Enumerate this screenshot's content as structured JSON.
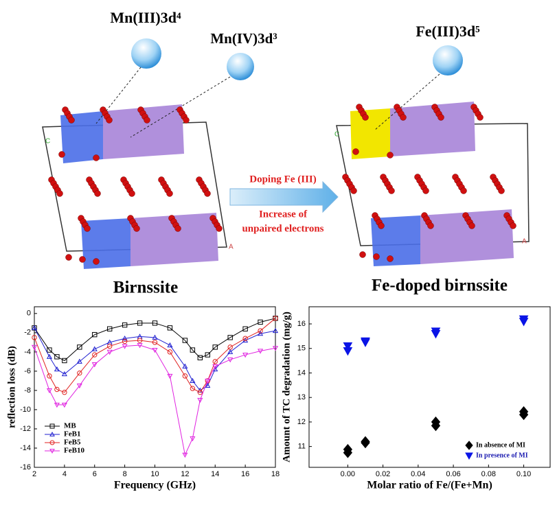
{
  "diagram": {
    "orbital_labels": [
      "Mn(III)3d⁴",
      "Mn(IV)3d³",
      "Fe(III)3d⁵"
    ],
    "arrow_top": "Doping Fe (III)",
    "arrow_bottom": [
      "Increase of",
      "unpaired electrons"
    ],
    "left_caption": "Birnssite",
    "right_caption": "Fe-doped birnssite",
    "axis_letters": [
      "C",
      "A",
      "C",
      "A"
    ]
  },
  "chart_data": [
    {
      "type": "line",
      "xlabel": "Frequency (GHz)",
      "ylabel": "reflection loss (dB)",
      "x": [
        2,
        3,
        3.5,
        4,
        5,
        6,
        7,
        8,
        9,
        10,
        11,
        12,
        12.5,
        13,
        13.5,
        14,
        15,
        16,
        17,
        18
      ],
      "series": [
        {
          "name": "MB",
          "color": "#000000",
          "marker": "square",
          "values": [
            -1.5,
            -3.8,
            -4.5,
            -4.9,
            -3.5,
            -2.2,
            -1.6,
            -1.2,
            -1.0,
            -1.0,
            -1.5,
            -2.8,
            -3.8,
            -4.6,
            -4.3,
            -3.5,
            -2.5,
            -1.6,
            -0.9,
            -0.5
          ]
        },
        {
          "name": "FeB1",
          "color": "#1f1fd0",
          "marker": "triangle-up",
          "values": [
            -1.5,
            -4.5,
            -5.8,
            -6.3,
            -5.0,
            -3.7,
            -3.0,
            -2.6,
            -2.4,
            -2.5,
            -3.3,
            -5.5,
            -7.0,
            -8.0,
            -7.5,
            -5.8,
            -4.0,
            -2.8,
            -2.1,
            -1.8
          ]
        },
        {
          "name": "FeB5",
          "color": "#e0201f",
          "marker": "circle",
          "values": [
            -2.5,
            -6.5,
            -7.9,
            -8.2,
            -6.2,
            -4.3,
            -3.4,
            -2.9,
            -2.8,
            -3.0,
            -4.0,
            -6.5,
            -7.8,
            -8.2,
            -7.0,
            -5.0,
            -3.5,
            -2.6,
            -1.8,
            -0.5
          ]
        },
        {
          "name": "FeB10",
          "color": "#e020e0",
          "marker": "triangle-down",
          "values": [
            -3.5,
            -8.0,
            -9.5,
            -9.5,
            -7.5,
            -5.3,
            -4.0,
            -3.4,
            -3.3,
            -3.8,
            -6.5,
            -14.7,
            -13.0,
            -9.0,
            -7.0,
            -5.5,
            -4.8,
            -4.3,
            -3.9,
            -3.6
          ]
        }
      ],
      "xlim": [
        2,
        18
      ],
      "ylim": [
        -16,
        0.7
      ],
      "xticks": [
        2,
        4,
        6,
        8,
        10,
        12,
        14,
        16,
        18
      ],
      "yticks": [
        0,
        -2,
        -4,
        -6,
        -8,
        -10,
        -12,
        -14,
        -16
      ],
      "legend": "lower-left"
    },
    {
      "type": "scatter",
      "xlabel": "Molar ratio of Fe/(Fe+Mn)",
      "ylabel": "Amount of TC degradation (mg/g)",
      "series": [
        {
          "name": "In absence of MI",
          "color": "#000000",
          "label_color": "#000000",
          "marker": "diamond",
          "x": [
            0,
            0,
            0.01,
            0.01,
            0.05,
            0.05,
            0.1,
            0.1
          ],
          "values": [
            10.75,
            10.88,
            11.15,
            11.2,
            11.85,
            12.0,
            12.3,
            12.42
          ]
        },
        {
          "name": "In presence of MI",
          "color": "#0a14e6",
          "label_color": "#1a1ab0",
          "marker": "triangle-down",
          "x": [
            0,
            0,
            0.01,
            0.01,
            0.05,
            0.05,
            0.1,
            0.1
          ],
          "values": [
            14.9,
            15.1,
            15.25,
            15.3,
            15.6,
            15.7,
            16.1,
            16.2
          ]
        }
      ],
      "xlim": [
        -0.022,
        0.115
      ],
      "ylim": [
        10.15,
        16.7
      ],
      "xticks": [
        {
          "value": 0,
          "label": "0.00"
        },
        {
          "value": 0.02,
          "label": "0.02"
        },
        {
          "value": 0.04,
          "label": "0.04"
        },
        {
          "value": 0.06,
          "label": "0.06"
        },
        {
          "value": 0.08,
          "label": "0.08"
        },
        {
          "value": 0.1,
          "label": "0.10"
        }
      ],
      "yticks": [
        11,
        12,
        13,
        14,
        15,
        16
      ],
      "legend": "lower-right"
    }
  ]
}
